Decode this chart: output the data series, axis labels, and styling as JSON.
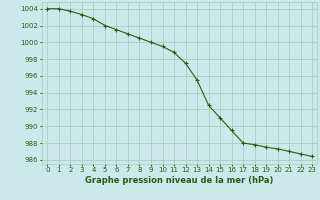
{
  "x": [
    0,
    1,
    2,
    3,
    4,
    5,
    6,
    7,
    8,
    9,
    10,
    11,
    12,
    13,
    14,
    15,
    16,
    17,
    18,
    19,
    20,
    21,
    22,
    23
  ],
  "y": [
    1004.0,
    1004.0,
    1003.7,
    1003.3,
    1002.8,
    1002.0,
    1001.5,
    1001.0,
    1000.5,
    1000.0,
    999.5,
    998.8,
    997.5,
    995.5,
    992.5,
    991.0,
    989.5,
    988.0,
    987.8,
    987.5,
    987.3,
    987.0,
    986.7,
    986.4
  ],
  "line_color": "#2d5a1b",
  "marker": "+",
  "marker_size": 3,
  "marker_linewidth": 0.8,
  "bg_color": "#cce8e8",
  "grid_color": "#a8c8b8",
  "xlabel": "Graphe pression niveau de la mer (hPa)",
  "ylim": [
    985.5,
    1004.8
  ],
  "xlim": [
    -0.5,
    23.4
  ],
  "yticks": [
    986,
    988,
    990,
    992,
    994,
    996,
    998,
    1000,
    1002,
    1004
  ],
  "xticks": [
    0,
    1,
    2,
    3,
    4,
    5,
    6,
    7,
    8,
    9,
    10,
    11,
    12,
    13,
    14,
    15,
    16,
    17,
    18,
    19,
    20,
    21,
    22,
    23
  ],
  "tick_color": "#2d5a1b",
  "tick_fontsize": 5.0,
  "xlabel_fontsize": 6.0,
  "xlabel_fontweight": "bold",
  "line_width": 0.8
}
